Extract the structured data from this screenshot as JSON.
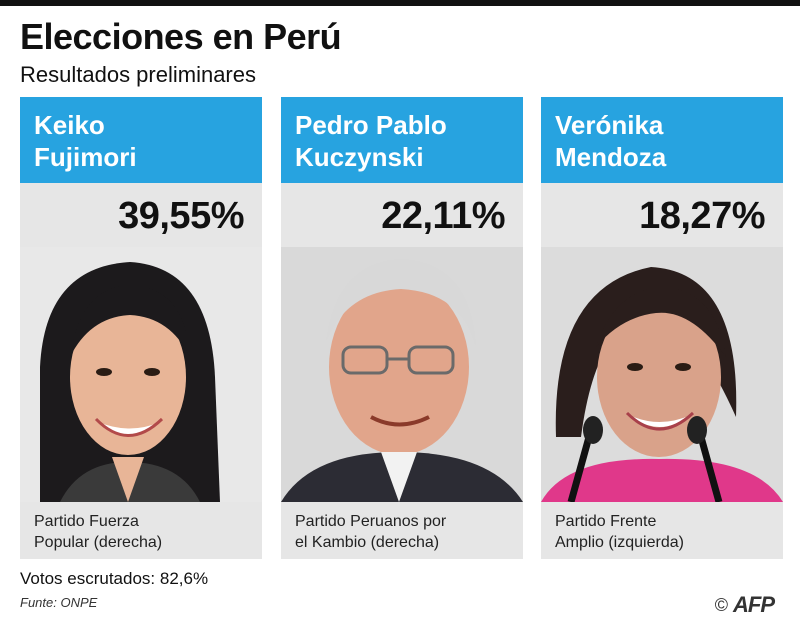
{
  "header": {
    "title": "Elecciones en Perú",
    "subtitle": "Resultados preliminares"
  },
  "candidates": [
    {
      "name": "Keiko\nFujimori",
      "percent": "39,55%",
      "party": "Partido Fuerza\nPopular (derecha)"
    },
    {
      "name": "Pedro Pablo\nKuczynski",
      "percent": "22,11%",
      "party": "Partido Peruanos por\nel Kambio (derecha)"
    },
    {
      "name": "Verónika\nMendoza",
      "percent": "18,27%",
      "party": "Partido Frente\nAmplio (izquierda)"
    }
  ],
  "footer": {
    "votes": "Votos escrutados: 82,6%",
    "source": "Funte: ONPE",
    "copyright_symbol": "©",
    "agency": "AFP"
  },
  "colors": {
    "header_blue": "#27a3e0",
    "card_background": "#e6e6e6"
  }
}
